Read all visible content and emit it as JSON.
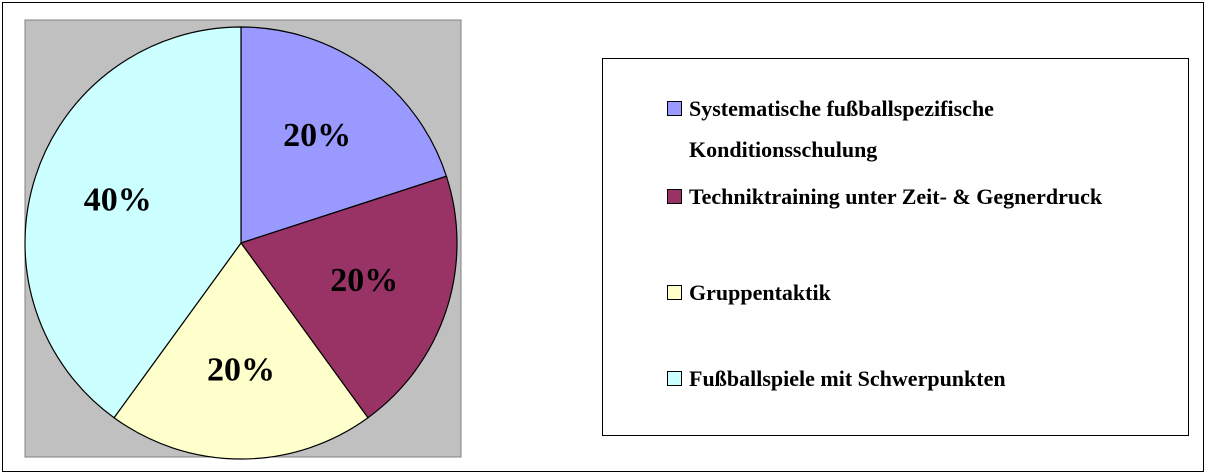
{
  "chart_data": {
    "type": "pie",
    "categories": [
      "Systematische fußballspezifische Konditionsschulung",
      "Techniktraining unter Zeit- & Gegnerdruck",
      "Gruppentaktik",
      "Fußballspiele mit Schwerpunkten"
    ],
    "values": [
      20,
      20,
      20,
      40
    ],
    "value_labels": [
      "20%",
      "20%",
      "20%",
      "40%"
    ],
    "colors": [
      "#9999ff",
      "#993366",
      "#ffffcc",
      "#ccffff"
    ],
    "legend": "right"
  }
}
